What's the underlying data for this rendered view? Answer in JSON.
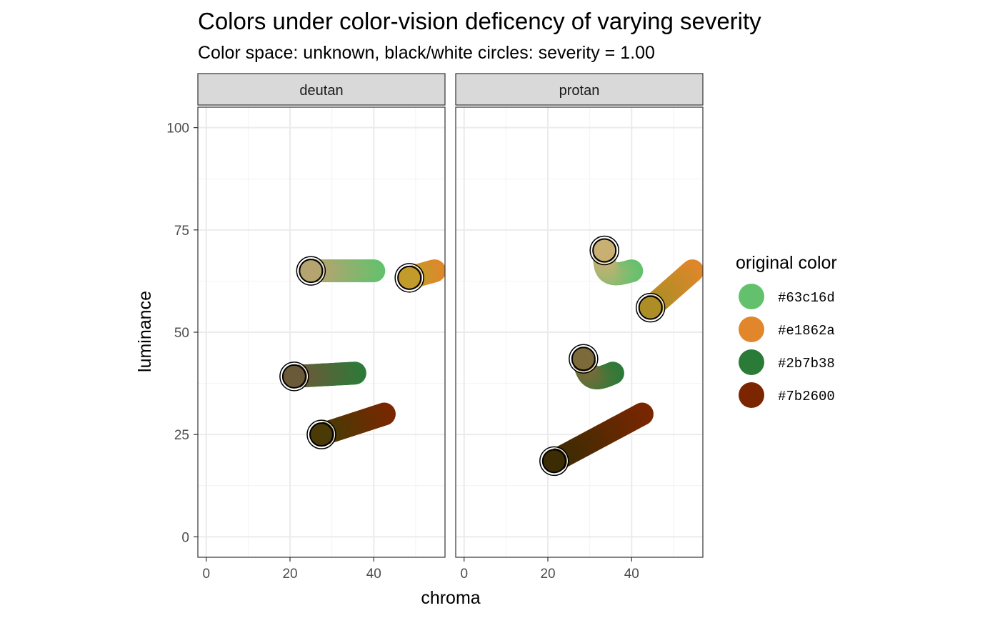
{
  "chart_data": {
    "type": "scatter",
    "title": "Colors under color-vision deficency of varying severity",
    "subtitle": "Color space: unknown, black/white circles: severity = 1.00",
    "xlabel": "chroma",
    "ylabel": "luminance",
    "xlim": [
      -2,
      57
    ],
    "ylim": [
      -5,
      105
    ],
    "xticks": [
      0,
      20,
      40
    ],
    "yticks": [
      0,
      25,
      50,
      75,
      100
    ],
    "grid": true,
    "legend_title": "original color",
    "legend_position": "right",
    "legend": [
      {
        "label": "#63c16d",
        "color": "#63c16d"
      },
      {
        "label": "#e1862a",
        "color": "#e1862a"
      },
      {
        "label": "#2b7b38",
        "color": "#2b7b38"
      },
      {
        "label": "#7b2600",
        "color": "#7b2600"
      }
    ],
    "panels": [
      {
        "name": "deutan",
        "series": [
          {
            "original": "#63c16d",
            "start": [
              40.0,
              65.0
            ],
            "end": [
              25.0,
              65.0
            ],
            "end_color": "#b5a46f",
            "curve": 0
          },
          {
            "original": "#e1862a",
            "start": [
              54.5,
              65.0
            ],
            "end": [
              48.5,
              63.3
            ],
            "end_color": "#c39b2a",
            "curve": 0
          },
          {
            "original": "#2b7b38",
            "start": [
              35.5,
              40.0
            ],
            "end": [
              21.0,
              39.2
            ],
            "end_color": "#6b5a38",
            "curve": 0
          },
          {
            "original": "#7b2600",
            "start": [
              42.5,
              30.0
            ],
            "end": [
              27.5,
              25.0
            ],
            "end_color": "#4a3a05",
            "curve": 0
          }
        ]
      },
      {
        "name": "protan",
        "series": [
          {
            "original": "#63c16d",
            "start": [
              40.0,
              65.0
            ],
            "end": [
              33.5,
              70.0
            ],
            "end_color": "#c8b073",
            "curve": 3.5
          },
          {
            "original": "#e1862a",
            "start": [
              54.5,
              65.0
            ],
            "end": [
              44.5,
              56.0
            ],
            "end_color": "#ad8e26",
            "curve": 0
          },
          {
            "original": "#2b7b38",
            "start": [
              35.5,
              40.0
            ],
            "end": [
              28.5,
              43.5
            ],
            "end_color": "#7c6a38",
            "curve": 3
          },
          {
            "original": "#7b2600",
            "start": [
              42.5,
              30.0
            ],
            "end": [
              21.5,
              18.5
            ],
            "end_color": "#3c2c03",
            "curve": 0
          }
        ]
      }
    ]
  }
}
